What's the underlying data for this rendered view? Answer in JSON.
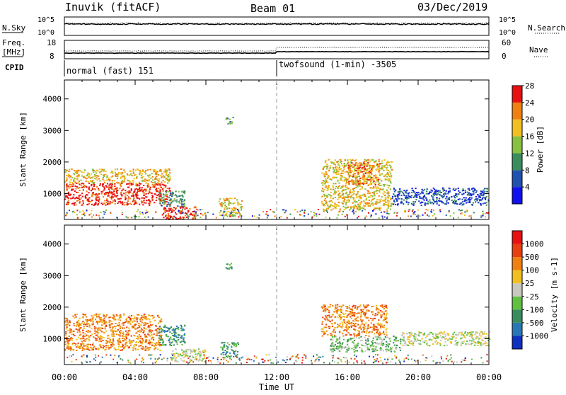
{
  "header": {
    "station": "Inuvik (fitACF)",
    "beam": "Beam 01",
    "date": "03/Dec/2019"
  },
  "top_panels": {
    "nsky_label": "N.Sky",
    "nsearch_label": "N.Search",
    "freq_label_line1": "Freq.",
    "freq_label_line2": "[MHz]",
    "nave_label": "Nave",
    "cpid_label": "CPID",
    "nsky_ticks": [
      "10^5",
      "10^0"
    ],
    "nsearch_ticks": [
      "10^5",
      "10^0"
    ],
    "freq_ticks": [
      "18",
      "8"
    ],
    "nave_ticks": [
      "60",
      "0"
    ],
    "cpid_segments": [
      {
        "label": "normal (fast) 151",
        "start_hour": 0,
        "end_hour": 12
      },
      {
        "label": "twofsound (1-min) -3505",
        "start_hour": 12,
        "end_hour": 24
      }
    ]
  },
  "x_axis": {
    "label": "Time UT",
    "ticks": [
      "00:00",
      "04:00",
      "08:00",
      "12:00",
      "16:00",
      "20:00",
      "00:00"
    ]
  },
  "chart_data": [
    {
      "type": "heatmap",
      "title": "",
      "xlabel": "Time UT",
      "ylabel": "Slant Range [km]",
      "x_unit": "hours UT",
      "xlim": [
        0,
        24
      ],
      "ylim": [
        180,
        4600
      ],
      "yticks": [
        "1000",
        "2000",
        "3000",
        "4000"
      ],
      "colorbar_label": "Power [dB]",
      "colorbar_ticks": [
        "4",
        "8",
        "12",
        "16",
        "20",
        "24",
        "28"
      ],
      "colorbar_colors": [
        "#1010f0",
        "#2050b0",
        "#3a8c5c",
        "#88c040",
        "#f0c020",
        "#f08010",
        "#e81010"
      ],
      "regions": [
        {
          "x0": 0.0,
          "x1": 6.0,
          "y0": 650,
          "y1": 1350,
          "level": 6
        },
        {
          "x0": 0.0,
          "x1": 6.0,
          "y0": 1350,
          "y1": 1800,
          "level": 4
        },
        {
          "x0": 5.3,
          "x1": 6.8,
          "y0": 600,
          "y1": 1100,
          "level": 2
        },
        {
          "x0": 5.5,
          "x1": 7.5,
          "y0": 200,
          "y1": 600,
          "level": 6
        },
        {
          "x0": 8.7,
          "x1": 10.0,
          "y0": 300,
          "y1": 900,
          "level": 4
        },
        {
          "x0": 9.1,
          "x1": 9.5,
          "y0": 3200,
          "y1": 3450,
          "level": 2
        },
        {
          "x0": 14.5,
          "x1": 18.5,
          "y0": 500,
          "y1": 2100,
          "level": 4
        },
        {
          "x0": 16.0,
          "x1": 17.8,
          "y0": 1300,
          "y1": 2000,
          "level": 5
        },
        {
          "x0": 18.5,
          "x1": 24.0,
          "y0": 650,
          "y1": 1200,
          "level": 1
        }
      ]
    },
    {
      "type": "heatmap",
      "title": "",
      "xlabel": "Time UT",
      "ylabel": "Slant Range [km]",
      "x_unit": "hours UT",
      "xlim": [
        0,
        24
      ],
      "ylim": [
        180,
        4600
      ],
      "yticks": [
        "1000",
        "2000",
        "3000",
        "4000"
      ],
      "colorbar_label": "Velocity [m s-1]",
      "colorbar_ticks": [
        "1000",
        "500",
        "100",
        "25",
        "-25",
        "-100",
        "-500",
        "-1000"
      ],
      "colorbar_colors": [
        "#1030c0",
        "#2878b8",
        "#3a8c5c",
        "#60c040",
        "#c8c8c0",
        "#f0c020",
        "#f08010",
        "#e84010",
        "#e81010"
      ],
      "regions": [
        {
          "x0": 0.0,
          "x1": 5.5,
          "y0": 650,
          "y1": 1800,
          "level": 6
        },
        {
          "x0": 5.3,
          "x1": 6.8,
          "y0": 800,
          "y1": 1450,
          "level": 2
        },
        {
          "x0": 6.0,
          "x1": 8.0,
          "y0": 300,
          "y1": 700,
          "level": 4
        },
        {
          "x0": 8.8,
          "x1": 9.8,
          "y0": 400,
          "y1": 900,
          "level": 2
        },
        {
          "x0": 9.1,
          "x1": 9.5,
          "y0": 3200,
          "y1": 3450,
          "level": 2
        },
        {
          "x0": 14.5,
          "x1": 18.2,
          "y0": 1100,
          "y1": 2100,
          "level": 6
        },
        {
          "x0": 15.0,
          "x1": 19.0,
          "y0": 600,
          "y1": 1100,
          "level": 3
        },
        {
          "x0": 19.0,
          "x1": 24.0,
          "y0": 800,
          "y1": 1250,
          "level": 4
        }
      ]
    }
  ]
}
